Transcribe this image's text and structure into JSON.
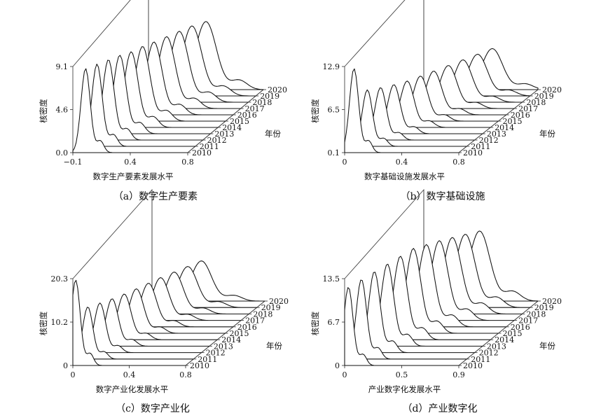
{
  "chart_data": [
    {
      "type": "area",
      "panel": "a",
      "caption": "（a）数字生产要素",
      "xlabel": "数字生产要素发展水平",
      "ylabel": "核密度",
      "zlabel": "年份",
      "xlim": [
        -0.1,
        0.8
      ],
      "xticks": [
        "−0.1",
        "0.4",
        "0.8"
      ],
      "ylim": [
        0.0,
        9.1
      ],
      "yticks": [
        "0.0",
        "4.6",
        "9.1"
      ],
      "series": [
        {
          "name": "2010",
          "peak_x": 0.0,
          "peak_y": 8.9
        },
        {
          "name": "2011",
          "peak_x": 0.03,
          "peak_y": 8.7
        },
        {
          "name": "2012",
          "peak_x": 0.06,
          "peak_y": 8.5
        },
        {
          "name": "2013",
          "peak_x": 0.09,
          "peak_y": 8.3
        },
        {
          "name": "2014",
          "peak_x": 0.12,
          "peak_y": 8.0
        },
        {
          "name": "2015",
          "peak_x": 0.15,
          "peak_y": 7.9
        },
        {
          "name": "2016",
          "peak_x": 0.18,
          "peak_y": 7.7
        },
        {
          "name": "2017",
          "peak_x": 0.22,
          "peak_y": 7.6
        },
        {
          "name": "2018",
          "peak_x": 0.26,
          "peak_y": 7.5
        },
        {
          "name": "2019",
          "peak_x": 0.3,
          "peak_y": 7.4
        },
        {
          "name": "2020",
          "peak_x": 0.35,
          "peak_y": 7.2
        }
      ]
    },
    {
      "type": "area",
      "panel": "b",
      "caption": "（b）数字基础设施",
      "xlabel": "数字基础设施发展水平",
      "ylabel": "核密度",
      "zlabel": "年份",
      "xlim": [
        -0.05,
        0.8
      ],
      "xticks": [
        "0",
        "0.4",
        "0.8"
      ],
      "ylim": [
        0.1,
        12.9
      ],
      "yticks": [
        "0.1",
        "6.5",
        "12.9"
      ],
      "series": [
        {
          "name": "2010",
          "peak_x": 0.02,
          "peak_y": 12.6
        },
        {
          "name": "2011",
          "peak_x": 0.06,
          "peak_y": 8.5
        },
        {
          "name": "2012",
          "peak_x": 0.1,
          "peak_y": 7.9
        },
        {
          "name": "2013",
          "peak_x": 0.14,
          "peak_y": 7.4
        },
        {
          "name": "2014",
          "peak_x": 0.18,
          "peak_y": 7.0
        },
        {
          "name": "2015",
          "peak_x": 0.22,
          "peak_y": 6.8
        },
        {
          "name": "2016",
          "peak_x": 0.26,
          "peak_y": 6.6
        },
        {
          "name": "2017",
          "peak_x": 0.31,
          "peak_y": 6.5
        },
        {
          "name": "2018",
          "peak_x": 0.36,
          "peak_y": 6.4
        },
        {
          "name": "2019",
          "peak_x": 0.41,
          "peak_y": 6.3
        },
        {
          "name": "2020",
          "peak_x": 0.46,
          "peak_y": 6.2
        }
      ]
    },
    {
      "type": "area",
      "panel": "c",
      "caption": "（c）数字产业化",
      "xlabel": "数字产业化发展水平",
      "ylabel": "核密度",
      "zlabel": "年份",
      "xlim": [
        0.0,
        0.8
      ],
      "xticks": [
        "0",
        "0.4",
        "0.8"
      ],
      "ylim": [
        0.0,
        20.3
      ],
      "yticks": [
        "0",
        "10.2",
        "20.3"
      ],
      "series": [
        {
          "name": "2010",
          "peak_x": 0.02,
          "peak_y": 20.0
        },
        {
          "name": "2011",
          "peak_x": 0.05,
          "peak_y": 12.2
        },
        {
          "name": "2012",
          "peak_x": 0.08,
          "peak_y": 11.6
        },
        {
          "name": "2013",
          "peak_x": 0.11,
          "peak_y": 11.1
        },
        {
          "name": "2014",
          "peak_x": 0.14,
          "peak_y": 10.7
        },
        {
          "name": "2015",
          "peak_x": 0.17,
          "peak_y": 10.4
        },
        {
          "name": "2016",
          "peak_x": 0.2,
          "peak_y": 10.2
        },
        {
          "name": "2017",
          "peak_x": 0.23,
          "peak_y": 10.0
        },
        {
          "name": "2018",
          "peak_x": 0.27,
          "peak_y": 9.8
        },
        {
          "name": "2019",
          "peak_x": 0.31,
          "peak_y": 9.6
        },
        {
          "name": "2020",
          "peak_x": 0.35,
          "peak_y": 9.4
        }
      ]
    },
    {
      "type": "area",
      "panel": "d",
      "caption": "（d）产业数字化",
      "xlabel": "产业数字化发展水平",
      "ylabel": "核密度",
      "zlabel": "年份",
      "xlim": [
        0.0,
        0.9
      ],
      "xticks": [
        "0",
        "0.5",
        "0.9"
      ],
      "ylim": [
        0.0,
        13.5
      ],
      "yticks": [
        "0",
        "6.7",
        "13.5"
      ],
      "series": [
        {
          "name": "2010",
          "peak_x": 0.03,
          "peak_y": 12.2
        },
        {
          "name": "2011",
          "peak_x": 0.07,
          "peak_y": 12.4
        },
        {
          "name": "2012",
          "peak_x": 0.11,
          "peak_y": 12.6
        },
        {
          "name": "2013",
          "peak_x": 0.15,
          "peak_y": 12.8
        },
        {
          "name": "2014",
          "peak_x": 0.19,
          "peak_y": 13.0
        },
        {
          "name": "2015",
          "peak_x": 0.23,
          "peak_y": 13.2
        },
        {
          "name": "2016",
          "peak_x": 0.27,
          "peak_y": 12.8
        },
        {
          "name": "2017",
          "peak_x": 0.31,
          "peak_y": 12.4
        },
        {
          "name": "2018",
          "peak_x": 0.35,
          "peak_y": 11.9
        },
        {
          "name": "2019",
          "peak_x": 0.39,
          "peak_y": 11.4
        },
        {
          "name": "2020",
          "peak_x": 0.44,
          "peak_y": 10.9
        }
      ]
    }
  ]
}
